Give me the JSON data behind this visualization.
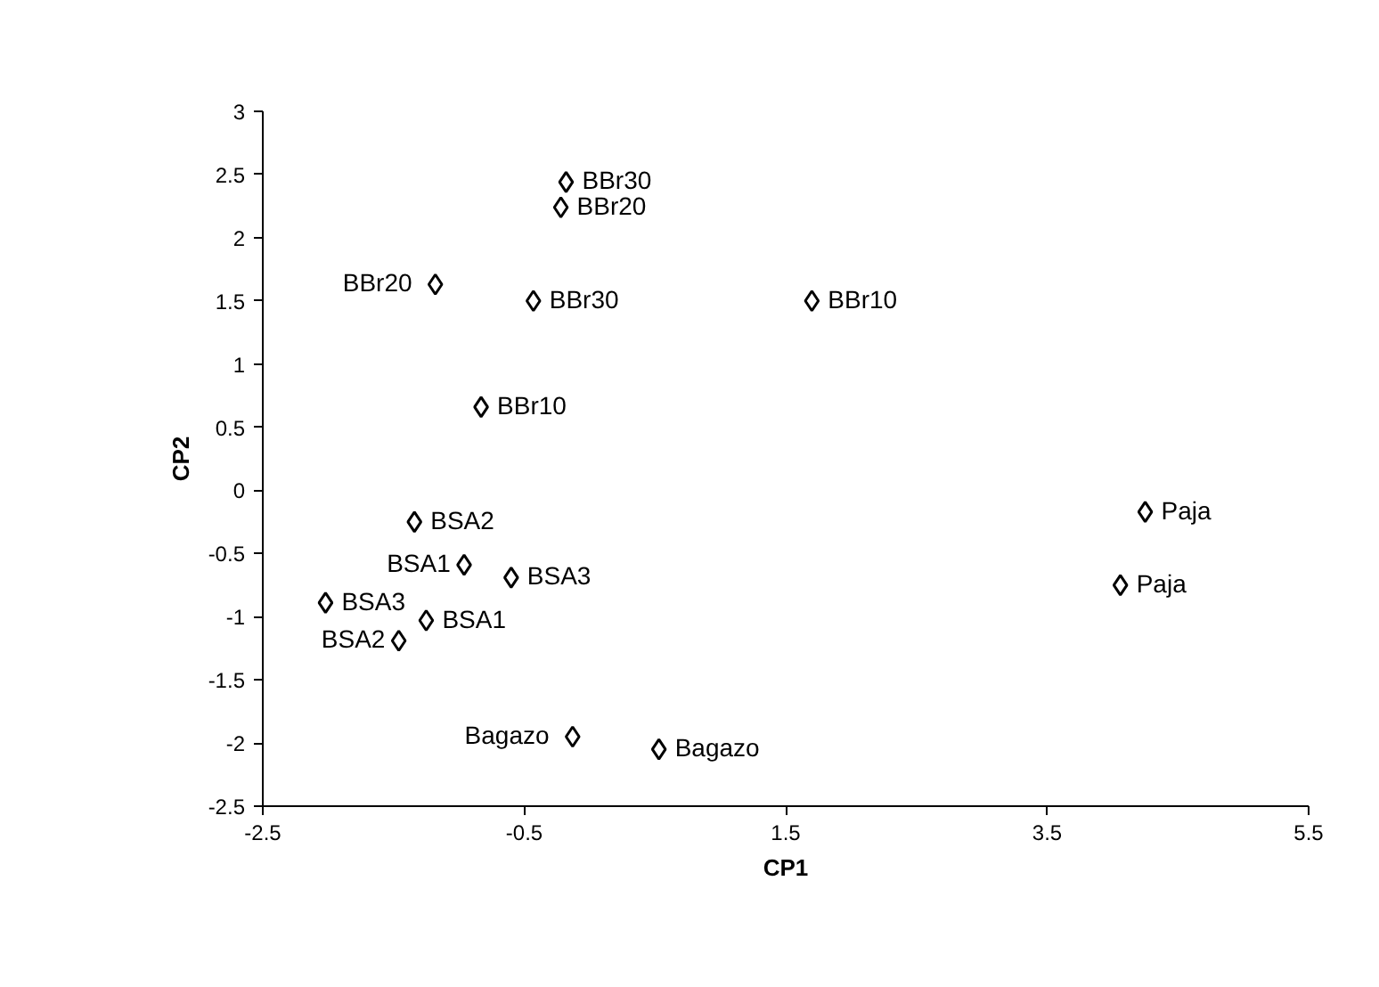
{
  "chart_data": {
    "type": "scatter",
    "xlabel": "CP1",
    "ylabel": "CP2",
    "x": [
      -0.18,
      -0.22,
      -1.18,
      -0.43,
      1.7,
      -0.83,
      -1.34,
      -0.96,
      -0.6,
      -2.02,
      -1.25,
      -1.46,
      -0.13,
      0.53,
      4.25,
      4.06
    ],
    "series": [
      {
        "color": "#000000",
        "values": [
          2.44,
          2.24,
          1.63,
          1.5,
          1.5,
          0.66,
          -0.25,
          -0.59,
          -0.69,
          -0.89,
          -1.03,
          -1.19,
          -1.95,
          -2.05,
          -0.17,
          -0.75
        ]
      }
    ],
    "annotations": [
      {
        "text": "BBr30",
        "x": -0.18,
        "y": 2.44
      },
      {
        "text": "BBr20",
        "x": -0.22,
        "y": 2.24
      },
      {
        "text": "BBr20",
        "x": -1.18,
        "y": 1.63
      },
      {
        "text": "BBr30",
        "x": -0.43,
        "y": 1.5
      },
      {
        "text": "BBr10",
        "x": 1.7,
        "y": 1.5
      },
      {
        "text": "BBr10",
        "x": -0.83,
        "y": 0.66
      },
      {
        "text": "BSA2",
        "x": -1.34,
        "y": -0.25
      },
      {
        "text": "BSA1",
        "x": -0.96,
        "y": -0.59
      },
      {
        "text": "BSA3",
        "x": -0.6,
        "y": -0.69
      },
      {
        "text": "BSA3",
        "x": -2.02,
        "y": -0.89
      },
      {
        "text": "BSA1",
        "x": -1.25,
        "y": -1.03
      },
      {
        "text": "BSA2",
        "x": -1.46,
        "y": -1.19
      },
      {
        "text": "Bagazo",
        "x": -0.13,
        "y": -1.95
      },
      {
        "text": "Bagazo",
        "x": 0.53,
        "y": -2.05
      },
      {
        "text": "Paja",
        "x": 4.25,
        "y": -0.17
      },
      {
        "text": "Paja",
        "x": 4.06,
        "y": -0.75
      }
    ],
    "xlim": [
      -2.5,
      5.5
    ],
    "ylim": [
      -2.5,
      3
    ],
    "xticks": [
      -2.5,
      -0.5,
      1.5,
      3.5,
      5.5
    ],
    "yticks": [
      -2.5,
      -2,
      -1.5,
      -1,
      -0.5,
      0,
      0.5,
      1,
      1.5,
      2,
      2.5,
      3
    ],
    "marker": "diamond",
    "grid": false
  }
}
